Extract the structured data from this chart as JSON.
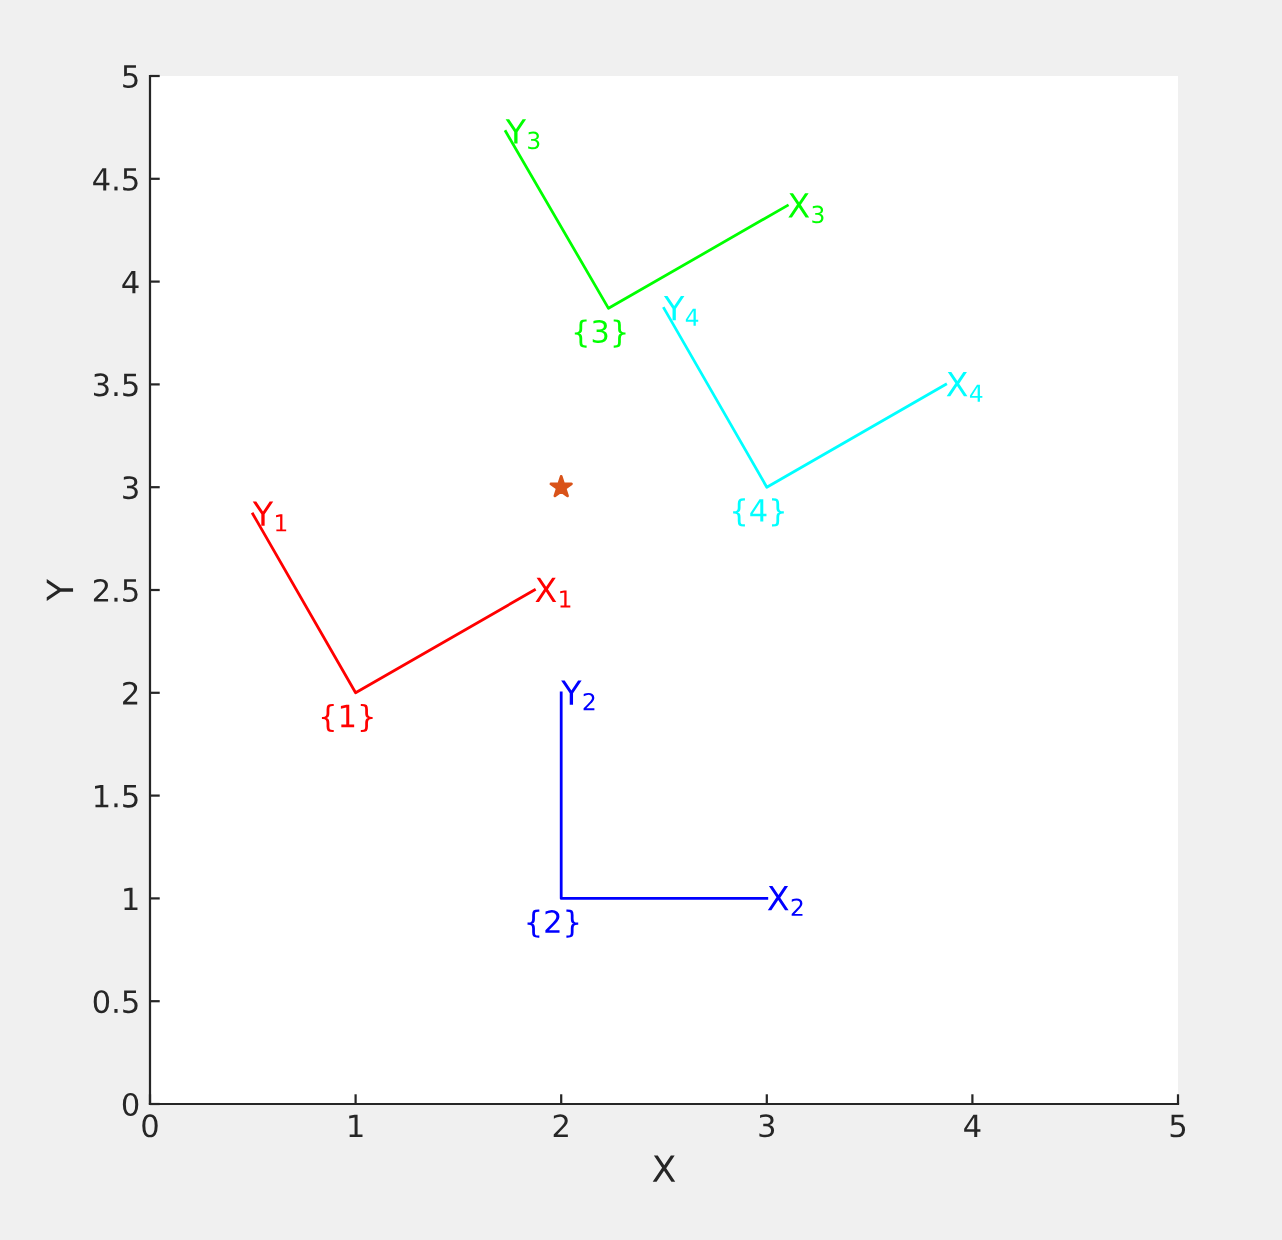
{
  "chart_data": {
    "type": "line",
    "xlabel": "X",
    "ylabel": "Y",
    "xlim": [
      0,
      5
    ],
    "ylim": [
      0,
      5
    ],
    "xticks": [
      0,
      1,
      2,
      3,
      4,
      5
    ],
    "yticks": [
      0,
      0.5,
      1,
      1.5,
      2,
      2.5,
      3,
      3.5,
      4,
      4.5,
      5
    ],
    "grid": false,
    "marker": "none",
    "line_style": "solid",
    "series": [
      {
        "color": "#ff0000",
        "x": [
          0.5,
          1,
          1.87
        ],
        "values": [
          2.87,
          2,
          2.5
        ]
      },
      {
        "color": "#0000ff",
        "x": [
          2,
          2,
          3
        ],
        "values": [
          2,
          1,
          1
        ]
      },
      {
        "color": "#00ff00",
        "x": [
          1.73,
          2.23,
          3.1
        ],
        "values": [
          4.73,
          3.87,
          4.37
        ]
      },
      {
        "color": "#00ffff",
        "x": [
          2.5,
          3,
          3.87
        ],
        "values": [
          3.87,
          3,
          3.5
        ]
      },
      {
        "type": "scatter",
        "marker": "star",
        "color": "#d95319",
        "x": [
          2
        ],
        "values": [
          3
        ]
      }
    ],
    "annotations": [
      {
        "text": "X$_{1}$",
        "x": 1.87,
        "y": 2.5
      },
      {
        "text": "Y$_{1}$",
        "x": 0.5,
        "y": 2.87
      },
      {
        "text": "{1}",
        "x": 1,
        "y": 2
      },
      {
        "text": "X$_{2}$",
        "x": 3,
        "y": 1
      },
      {
        "text": "Y$_{2}$",
        "x": 2,
        "y": 2
      },
      {
        "text": "{2}",
        "x": 2,
        "y": 1
      },
      {
        "text": "X$_{3}$",
        "x": 3.1,
        "y": 4.37
      },
      {
        "text": "Y$_{3}$",
        "x": 1.73,
        "y": 4.73
      },
      {
        "text": "{3}",
        "x": 2.23,
        "y": 3.87
      },
      {
        "text": "X$_{4}$",
        "x": 3.87,
        "y": 3.5
      },
      {
        "text": "Y$_{4}$",
        "x": 2.5,
        "y": 3.87
      },
      {
        "text": "{4}",
        "x": 3,
        "y": 3
      }
    ]
  }
}
